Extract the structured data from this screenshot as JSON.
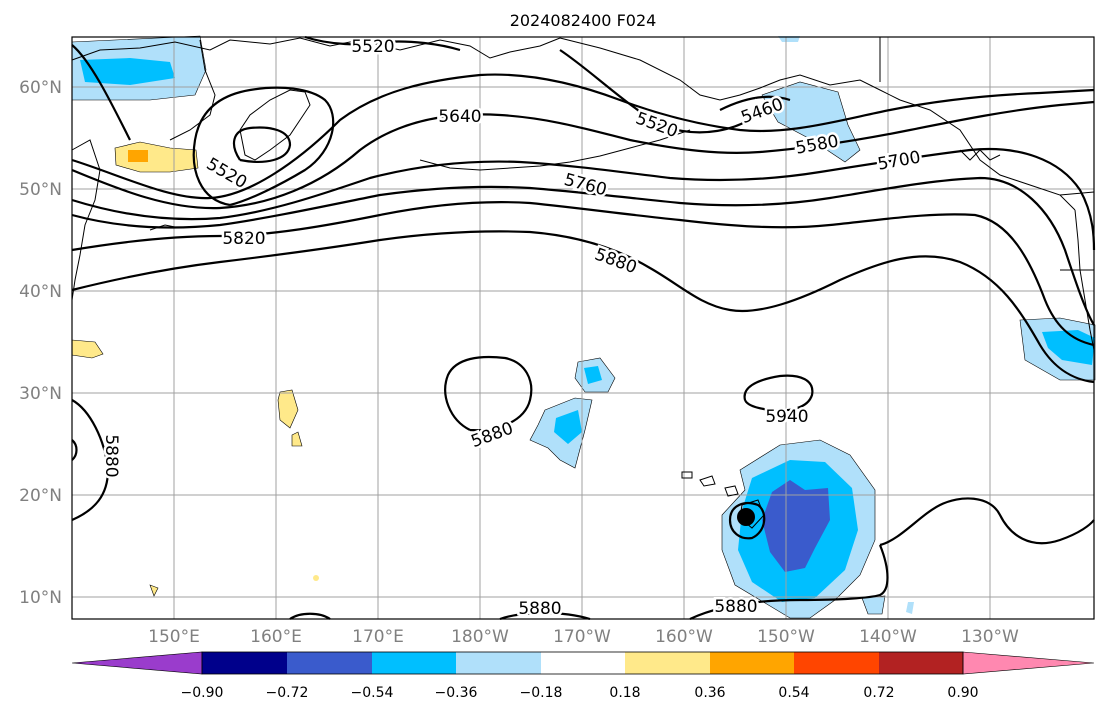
{
  "title": "2024082400 F024",
  "lat_labels": [
    "60°N",
    "50°N",
    "40°N",
    "30°N",
    "20°N",
    "10°N"
  ],
  "lon_labels": [
    "150°E",
    "160°E",
    "170°E",
    "180°W",
    "170°W",
    "160°W",
    "150°W",
    "140°W",
    "130°W"
  ],
  "contour_labels": [
    "5520",
    "5640",
    "5520",
    "5520",
    "5460",
    "5580",
    "5700",
    "5760",
    "5820",
    "5880",
    "5880",
    "5880",
    "5940",
    "5880",
    "5880"
  ],
  "colorbar": {
    "ticks": [
      "−0.90",
      "−0.72",
      "−0.54",
      "−0.36",
      "−0.18",
      "0.18",
      "0.36",
      "0.54",
      "0.72",
      "0.90"
    ],
    "colors": [
      "#9a3ccc",
      "#00008b",
      "#3a5bcc",
      "#00bfff",
      "#b0e0fa",
      "#ffffff",
      "#ffe98a",
      "#ffa500",
      "#ff4500",
      "#b22222",
      "#ff88b0"
    ]
  }
}
